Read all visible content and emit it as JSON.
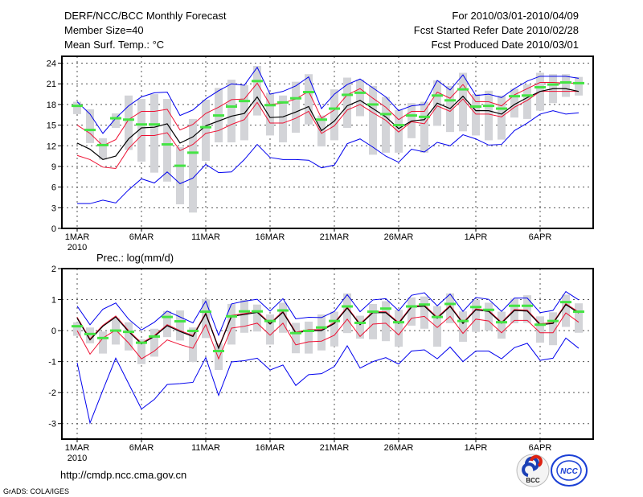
{
  "header": {
    "title": "DERF/NCC/BCC Monthly Forecast",
    "member_size": "Member Size=40",
    "variable": "Mean Surf. Temp.: °C",
    "period": "For 2010/03/01-2010/04/09",
    "started": "Fcst Started Refer Date 2010/02/28",
    "produced": "Fcst Produced Date 2010/03/01"
  },
  "footer": {
    "url": "http://cmdp.ncc.cma.gov.cn",
    "credit": "GrADS: COLA/IGES",
    "logo_bcc": "BCC",
    "logo_ncc": "NCC"
  },
  "colors": {
    "range": "#d3d4d8",
    "median": "#44e444",
    "mean": "#000000",
    "band": "#ee1133",
    "extreme": "#0000ee"
  },
  "chart_data": [
    {
      "type": "line",
      "title": "Mean Surf. Temp.: °C",
      "ylabel": "°C",
      "ylim": [
        0,
        25
      ],
      "yticks": [
        0,
        3,
        6,
        9,
        12,
        15,
        18,
        21,
        24
      ],
      "xticks": [
        {
          "day": 1,
          "label": "1MAR"
        },
        {
          "day": 6,
          "label": "6MAR"
        },
        {
          "day": 11,
          "label": "11MAR"
        },
        {
          "day": 16,
          "label": "16MAR"
        },
        {
          "day": 21,
          "label": "21MAR"
        },
        {
          "day": 26,
          "label": "26MAR"
        },
        {
          "day": 32,
          "label": "1APR"
        },
        {
          "day": 37,
          "label": "6APR"
        }
      ],
      "year_label": "2010",
      "days": 40,
      "range_min": [
        16.6,
        12.4,
        10.0,
        14.6,
        11.4,
        9.7,
        8.1,
        6.8,
        3.5,
        2.3,
        9.8,
        12.5,
        12.5,
        12.8,
        16.4,
        13.5,
        12.5,
        13.9,
        15.1,
        11.9,
        12.8,
        14.6,
        16.3,
        10.7,
        11.0,
        11.0,
        13.1,
        11.0,
        14.9,
        14.0,
        14.1,
        13.5,
        12.8,
        12.9,
        16.1,
        15.9,
        17.1,
        18.2,
        19.1,
        19.3
      ],
      "range_max": [
        18.4,
        17.3,
        13.1,
        16.7,
        19.3,
        18.8,
        19.5,
        18.8,
        11.8,
        15.9,
        18.7,
        20.4,
        21.6,
        20.8,
        23.6,
        19.7,
        19.3,
        21.3,
        22.4,
        16.4,
        20.2,
        21.9,
        21.6,
        20.7,
        19.1,
        17.2,
        18.2,
        18.4,
        21.5,
        20.7,
        22.6,
        19.5,
        20.0,
        19.3,
        20.3,
        20.9,
        22.6,
        22.4,
        22.4,
        22.0
      ],
      "median": [
        17.8,
        14.3,
        12.1,
        16.0,
        15.8,
        15.1,
        15.1,
        12.2,
        9.1,
        11.0,
        14.7,
        16.4,
        17.7,
        18.5,
        21.4,
        17.9,
        18.3,
        18.9,
        19.8,
        15.8,
        17.4,
        19.4,
        19.7,
        18.0,
        16.6,
        15.0,
        16.4,
        16.2,
        19.3,
        18.6,
        20.2,
        17.7,
        17.8,
        17.4,
        19.2,
        19.3,
        20.5,
        20.9,
        21.2,
        21.1
      ],
      "mean": [
        12.4,
        11.5,
        10.0,
        10.5,
        13.0,
        14.6,
        14.7,
        15.2,
        12.4,
        13.3,
        14.9,
        15.6,
        16.3,
        16.7,
        19.1,
        16.1,
        16.2,
        16.9,
        17.7,
        14.2,
        15.6,
        17.8,
        18.6,
        17.4,
        16.2,
        14.5,
        15.6,
        15.8,
        18.2,
        17.4,
        19.2,
        17.1,
        17.1,
        16.6,
        18.0,
        19.0,
        19.9,
        20.3,
        20.3,
        19.9
      ],
      "band_upper": [
        15.0,
        13.8,
        12.0,
        12.9,
        15.8,
        17.0,
        17.0,
        17.3,
        14.3,
        15.1,
        16.7,
        17.6,
        18.7,
        18.8,
        21.1,
        18.0,
        18.2,
        18.8,
        19.9,
        16.0,
        17.2,
        19.4,
        20.3,
        18.9,
        17.6,
        15.8,
        17.0,
        17.0,
        19.8,
        18.9,
        20.9,
        18.4,
        18.4,
        17.8,
        19.4,
        20.3,
        21.2,
        21.2,
        21.1,
        21.1
      ],
      "band_lower": [
        10.6,
        10.0,
        8.9,
        8.7,
        11.6,
        13.5,
        13.5,
        13.9,
        11.3,
        12.2,
        13.8,
        14.2,
        15.1,
        15.8,
        18.3,
        15.3,
        15.3,
        16.0,
        17.0,
        13.8,
        14.9,
        17.2,
        18.0,
        16.8,
        15.7,
        14.0,
        15.5,
        15.2,
        17.8,
        17.0,
        18.8,
        16.6,
        16.6,
        16.2,
        17.6,
        18.6,
        19.9,
        19.9,
        19.9,
        19.9
      ],
      "max_line": [
        18.4,
        16.6,
        13.8,
        16.0,
        17.8,
        19.1,
        19.7,
        19.8,
        16.4,
        17.2,
        18.8,
        20.0,
        21.0,
        20.8,
        23.4,
        19.5,
        19.9,
        20.7,
        22.0,
        17.4,
        19.5,
        20.9,
        21.7,
        20.4,
        19.1,
        17.1,
        17.8,
        18.0,
        21.5,
        20.1,
        22.3,
        19.3,
        19.5,
        19.0,
        20.3,
        21.4,
        22.1,
        22.1,
        22.1,
        21.8
      ],
      "min_line": [
        3.6,
        3.6,
        4.1,
        3.7,
        5.6,
        7.2,
        6.6,
        8.2,
        6.5,
        7.3,
        9.3,
        8.1,
        8.2,
        10.0,
        12.2,
        10.3,
        10.0,
        10.0,
        9.9,
        8.8,
        9.2,
        12.3,
        13.0,
        11.8,
        10.5,
        9.6,
        11.5,
        11.1,
        12.5,
        12.0,
        13.6,
        13.0,
        12.1,
        12.2,
        14.2,
        15.3,
        16.6,
        17.1,
        16.6,
        16.8
      ]
    },
    {
      "type": "line",
      "title": "Prec.: log(mm/d)",
      "ylabel": "log(mm/d)",
      "ylim": [
        -3.5,
        2
      ],
      "yticks": [
        -3,
        -2,
        -1,
        0,
        1,
        2
      ],
      "xticks": [
        {
          "day": 1,
          "label": "1MAR"
        },
        {
          "day": 6,
          "label": "6MAR"
        },
        {
          "day": 11,
          "label": "11MAR"
        },
        {
          "day": 16,
          "label": "16MAR"
        },
        {
          "day": 21,
          "label": "21MAR"
        },
        {
          "day": 26,
          "label": "26MAR"
        },
        {
          "day": 32,
          "label": "1APR"
        },
        {
          "day": 37,
          "label": "6APR"
        }
      ],
      "year_label": "2010",
      "days": 40,
      "range_min": [
        -0.17,
        -0.41,
        -0.74,
        -0.45,
        -0.64,
        -1.08,
        -0.84,
        -0.21,
        -0.32,
        -1.01,
        -0.24,
        -1.27,
        -0.45,
        -0.07,
        -0.03,
        -0.45,
        -0.07,
        -0.73,
        -0.74,
        -0.64,
        -0.51,
        -0.08,
        -0.26,
        -0.28,
        -0.34,
        -0.52,
        0.16,
        0.06,
        -0.52,
        0.24,
        -0.36,
        -0.04,
        0.0,
        -0.26,
        0.24,
        0.25,
        -0.39,
        -0.47,
        0.12,
        -0.07
      ],
      "range_max": [
        0.27,
        0.1,
        -0.03,
        0.4,
        0.27,
        -0.28,
        0.06,
        0.63,
        0.65,
        0.1,
        1.01,
        -0.41,
        0.86,
        0.99,
        0.84,
        0.52,
        0.9,
        0.25,
        0.29,
        0.52,
        0.61,
        1.2,
        0.48,
        0.86,
        0.95,
        0.67,
        1.07,
        1.1,
        0.79,
        1.2,
        0.62,
        0.99,
        0.9,
        0.61,
        1.03,
        1.14,
        0.46,
        0.59,
        1.16,
        0.88
      ],
      "median": [
        0.14,
        -0.11,
        -0.24,
        0.0,
        -0.04,
        -0.39,
        -0.19,
        0.44,
        0.3,
        -0.01,
        0.61,
        -0.66,
        0.46,
        0.62,
        0.62,
        0.31,
        0.65,
        -0.08,
        -0.01,
        0.1,
        0.31,
        0.78,
        0.25,
        0.61,
        0.71,
        0.27,
        0.78,
        0.84,
        0.44,
        0.86,
        0.31,
        0.76,
        0.67,
        0.27,
        0.8,
        0.8,
        0.19,
        0.31,
        0.92,
        0.61
      ],
      "mean": [
        0.4,
        -0.3,
        0.14,
        0.44,
        -0.03,
        -0.43,
        -0.19,
        0.16,
        -0.03,
        -0.19,
        0.54,
        -0.57,
        0.46,
        0.52,
        0.59,
        0.21,
        0.59,
        -0.08,
        0.0,
        0.0,
        0.23,
        0.73,
        0.19,
        0.58,
        0.58,
        0.23,
        0.76,
        0.79,
        0.4,
        0.78,
        0.23,
        0.67,
        0.62,
        0.24,
        0.65,
        0.63,
        0.19,
        0.23,
        0.84,
        0.57
      ],
      "band_upper": [
        0.43,
        -0.27,
        0.17,
        0.47,
        0.0,
        -0.4,
        -0.16,
        0.19,
        0.0,
        -0.16,
        0.57,
        -0.54,
        0.49,
        0.55,
        0.62,
        0.24,
        0.62,
        -0.05,
        0.03,
        0.03,
        0.26,
        0.76,
        0.22,
        0.61,
        0.61,
        0.26,
        0.79,
        0.82,
        0.43,
        0.81,
        0.26,
        0.7,
        0.65,
        0.27,
        0.68,
        0.66,
        0.22,
        0.26,
        0.87,
        0.6
      ],
      "band_lower": [
        0.0,
        -0.76,
        -0.24,
        0.02,
        -0.4,
        -0.91,
        -0.66,
        -0.3,
        -0.45,
        -0.57,
        0.19,
        -0.91,
        0.08,
        0.14,
        0.24,
        -0.15,
        0.24,
        -0.46,
        -0.36,
        -0.34,
        -0.15,
        0.37,
        -0.19,
        0.21,
        0.24,
        -0.14,
        0.4,
        0.46,
        0.1,
        0.46,
        -0.09,
        0.37,
        0.31,
        -0.07,
        0.33,
        0.33,
        -0.07,
        -0.07,
        0.57,
        0.27
      ],
      "max_line": [
        0.79,
        0.19,
        0.69,
        0.89,
        0.37,
        0.02,
        0.27,
        0.63,
        0.44,
        0.25,
        0.95,
        -0.15,
        0.86,
        0.95,
        1.01,
        0.63,
        1.03,
        0.38,
        0.43,
        0.42,
        0.62,
        1.16,
        0.61,
        0.99,
        1.03,
        0.64,
        1.14,
        1.22,
        0.8,
        1.18,
        0.62,
        1.07,
        1.01,
        0.62,
        1.05,
        1.05,
        0.58,
        0.65,
        1.26,
        0.99
      ],
      "min_line": [
        -1.04,
        -2.98,
        -1.92,
        -0.89,
        -1.71,
        -2.53,
        -2.22,
        -1.74,
        -1.71,
        -1.67,
        -0.87,
        -2.09,
        -1.01,
        -0.97,
        -0.89,
        -1.27,
        -1.11,
        -1.77,
        -1.42,
        -1.39,
        -1.16,
        -0.49,
        -1.21,
        -1.0,
        -0.87,
        -1.08,
        -0.66,
        -0.62,
        -0.91,
        -0.53,
        -1.0,
        -0.66,
        -0.66,
        -0.91,
        -0.55,
        -0.41,
        -0.96,
        -0.89,
        -0.24,
        -0.57
      ]
    }
  ]
}
